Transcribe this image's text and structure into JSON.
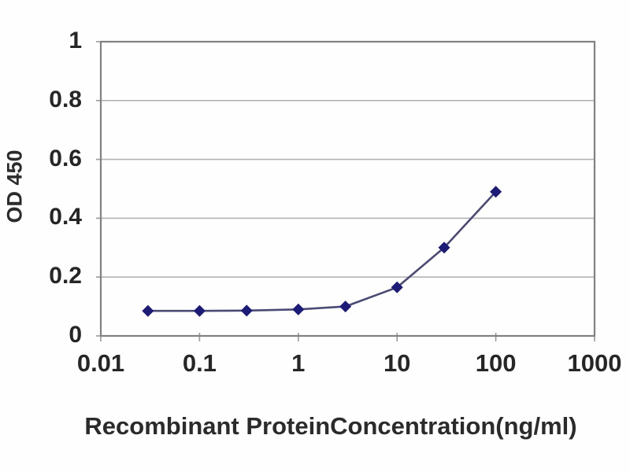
{
  "chart_data": {
    "type": "line",
    "title": "",
    "xlabel": "Recombinant ProteinConcentration(ng/ml)",
    "ylabel": "OD 450",
    "xscale": "log",
    "xlim": [
      0.01,
      1000
    ],
    "ylim": [
      0,
      1
    ],
    "grid": "horizontal",
    "legend": "none",
    "marker": "diamond",
    "x": [
      0.03,
      0.1,
      0.3,
      1,
      3,
      10,
      30,
      100
    ],
    "series": [
      {
        "name": "OD 450",
        "values": [
          0.085,
          0.085,
          0.086,
          0.09,
          0.1,
          0.165,
          0.3,
          0.49
        ]
      }
    ],
    "xticks": {
      "values": [
        0.01,
        0.1,
        1,
        10,
        100,
        1000
      ],
      "labels": [
        "0.01",
        "0.1",
        "1",
        "10",
        "100",
        "1000"
      ]
    },
    "yticks": {
      "values": [
        0,
        0.2,
        0.4,
        0.6,
        0.8,
        1
      ],
      "labels": [
        "0",
        "0.2",
        "0.4",
        "0.6",
        "0.8",
        "1"
      ]
    },
    "colors": {
      "marker": "#1c1c78",
      "line": "#4a4a75",
      "frame": "#818181",
      "grid": "#b3b3b3",
      "tick": "#9a9a9a",
      "text": "#262626"
    }
  }
}
